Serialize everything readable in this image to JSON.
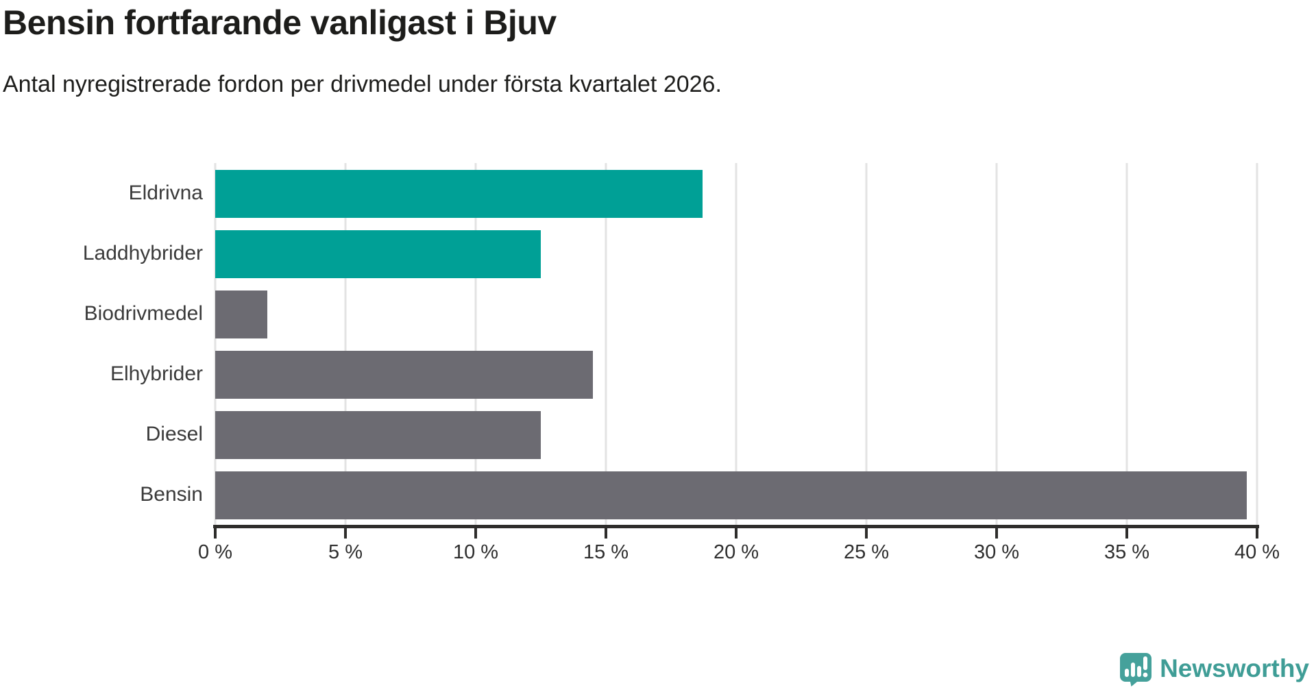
{
  "header": {
    "title": "Bensin fortfarande vanligast i Bjuv",
    "subtitle": "Antal nyregistrerade fordon per drivmedel under första kvartalet 2026."
  },
  "chart_data": {
    "type": "bar",
    "orientation": "horizontal",
    "title": "Bensin fortfarande vanligast i Bjuv",
    "subtitle": "Antal nyregistrerade fordon per drivmedel under första kvartalet 2026.",
    "categories": [
      "Eldrivna",
      "Laddhybrider",
      "Biodrivmedel",
      "Elhybrider",
      "Diesel",
      "Bensin"
    ],
    "values": [
      18.7,
      12.5,
      2.0,
      14.5,
      12.5,
      39.6
    ],
    "unit": "%",
    "bar_colors": [
      "#00a096",
      "#00a096",
      "#6c6b72",
      "#6c6b72",
      "#6c6b72",
      "#6c6b72"
    ],
    "xlim": [
      0,
      40
    ],
    "x_ticks": [
      0,
      5,
      10,
      15,
      20,
      25,
      30,
      35,
      40
    ],
    "x_tick_labels": [
      "0 %",
      "5 %",
      "10 %",
      "15 %",
      "20 %",
      "25 %",
      "30 %",
      "35 %",
      "40 %"
    ],
    "xlabel": "",
    "ylabel": "",
    "grid": "vertical",
    "legend": "none"
  },
  "colors": {
    "accent_teal": "#00a096",
    "bar_gray": "#6c6b72",
    "grid_line": "#e3e3e3",
    "axis_line": "#2e2d2b",
    "text_dark": "#1d1d1b",
    "logo_teal": "#3f9d96"
  },
  "branding": {
    "logo_text": "Newsworthy",
    "logo_icon": "speech-bubble-bar-chart-icon"
  }
}
